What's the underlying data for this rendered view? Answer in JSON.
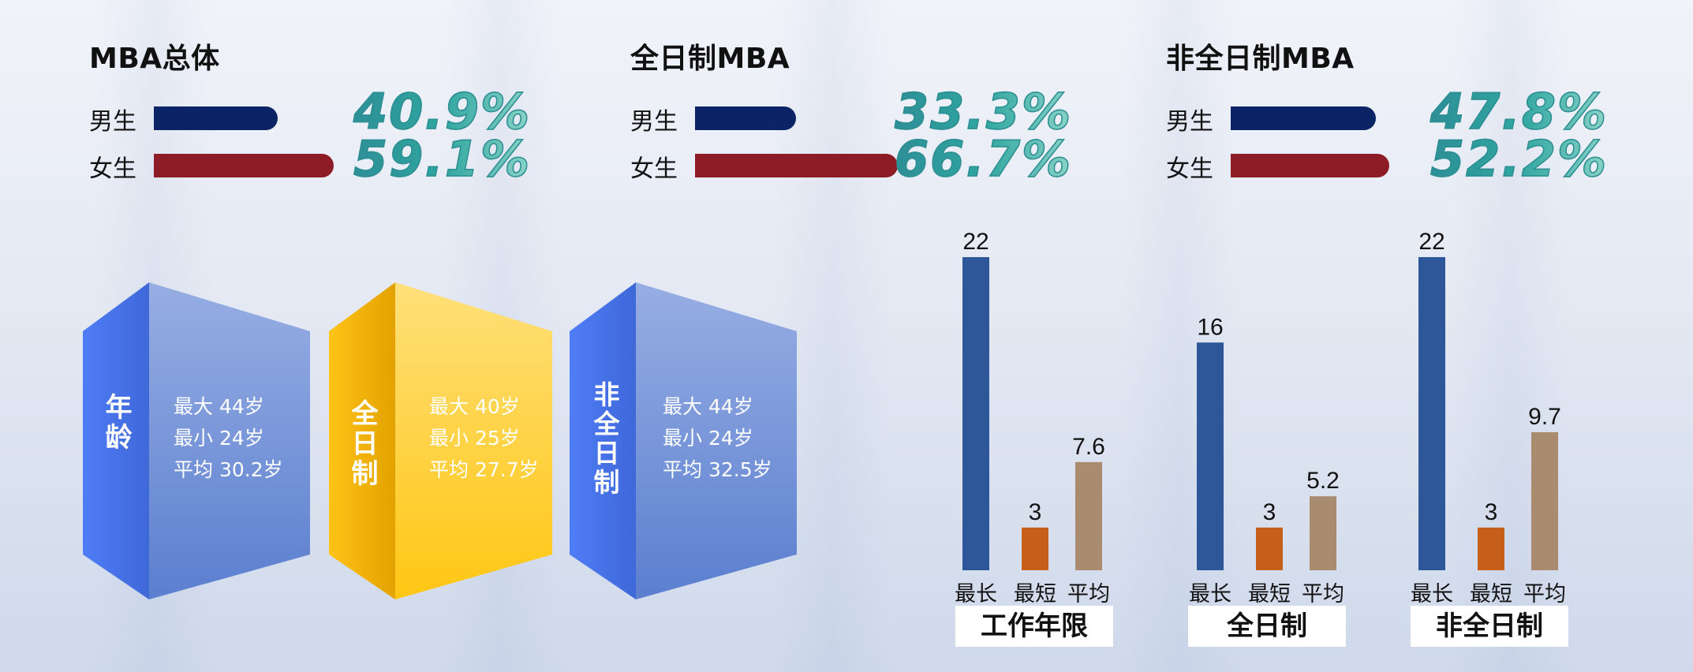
{
  "gender": [
    {
      "title": "MBA总体",
      "rows": [
        {
          "label": "男生",
          "value": 40.9,
          "pct": "40.9%",
          "kind": "male"
        },
        {
          "label": "女生",
          "value": 59.1,
          "pct": "59.1%",
          "kind": "female"
        }
      ]
    },
    {
      "title": "全日制MBA",
      "rows": [
        {
          "label": "男生",
          "value": 33.3,
          "pct": "33.3%",
          "kind": "male"
        },
        {
          "label": "女生",
          "value": 66.7,
          "pct": "66.7%",
          "kind": "female"
        }
      ]
    },
    {
      "title": "非全日制MBA",
      "rows": [
        {
          "label": "男生",
          "value": 47.8,
          "pct": "47.8%",
          "kind": "male"
        },
        {
          "label": "女生",
          "value": 52.2,
          "pct": "52.2%",
          "kind": "female"
        }
      ]
    }
  ],
  "age_prisms": [
    {
      "label": "年龄",
      "color": "blue",
      "lines": [
        "最大 44岁",
        "最小 24岁",
        "平均 30.2岁"
      ]
    },
    {
      "label": "全日制",
      "color": "yellow",
      "lines": [
        "最大 40岁",
        "最小 25岁",
        "平均 27.7岁"
      ]
    },
    {
      "label": "非全日制",
      "color": "blue",
      "lines": [
        "最大 44岁",
        "最小 24岁",
        "平均 32.5岁"
      ]
    }
  ],
  "colors": {
    "male": "#0b2466",
    "female": "#8e1c27",
    "bar_max": "#2d5799",
    "bar_min": "#c65f1a",
    "bar_avg": "#a98c70",
    "prism_blue": "#4b72e6",
    "prism_yellow": "#ffc311"
  },
  "chart_data": [
    {
      "type": "bar",
      "title": "工作年限",
      "categories": [
        "最长",
        "最短",
        "平均"
      ],
      "values": [
        22,
        3,
        7.6
      ],
      "value_labels": [
        "22",
        "3",
        "7.6"
      ],
      "ylim": [
        0,
        22
      ]
    },
    {
      "type": "bar",
      "title": "全日制",
      "categories": [
        "最长",
        "最短",
        "平均"
      ],
      "values": [
        16,
        3,
        5.2
      ],
      "value_labels": [
        "16",
        "3",
        "5.2"
      ],
      "ylim": [
        0,
        22
      ]
    },
    {
      "type": "bar",
      "title": "非全日制",
      "categories": [
        "最长",
        "最短",
        "平均"
      ],
      "values": [
        22,
        3,
        9.7
      ],
      "value_labels": [
        "22",
        "3",
        "9.7"
      ],
      "ylim": [
        0,
        22
      ]
    }
  ]
}
